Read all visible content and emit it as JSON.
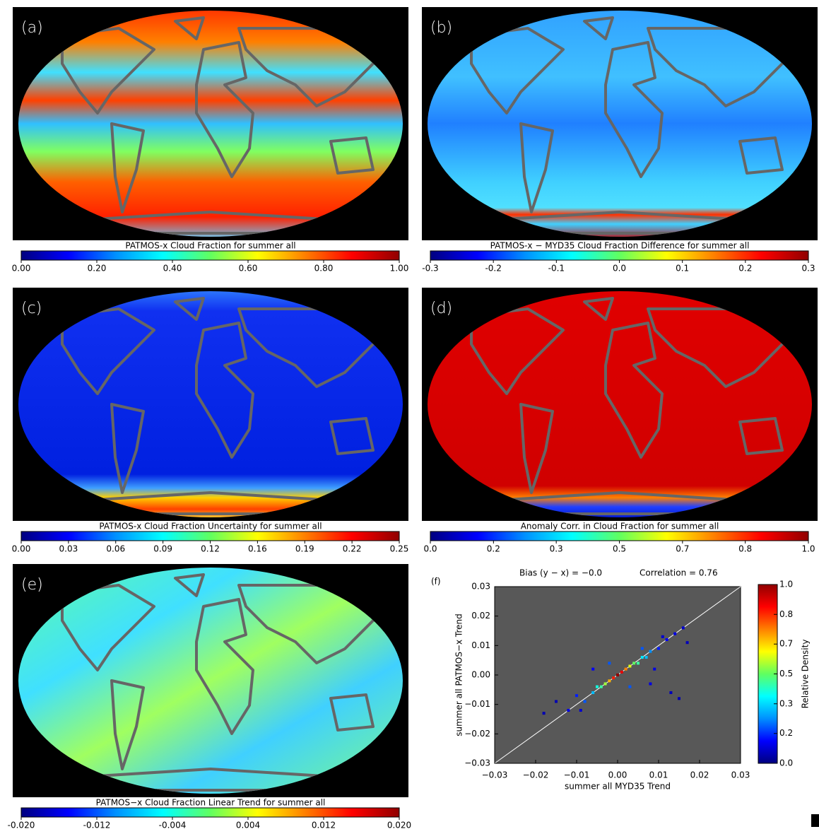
{
  "chart_data": [
    {
      "type": "map",
      "panel_label": "(a)",
      "colorbar": {
        "title": "PATMOS-x Cloud Fraction for summer all",
        "lim": [
          0,
          1
        ],
        "ticks": [
          {
            "value": 0,
            "label": "0.00"
          },
          {
            "value": 0.2,
            "label": "0.20"
          },
          {
            "value": 0.4,
            "label": "0.40"
          },
          {
            "value": 0.6,
            "label": "0.60"
          },
          {
            "value": 0.8,
            "label": "0.80"
          },
          {
            "value": 1,
            "label": "1.00"
          }
        ],
        "colormap": [
          "#00007f",
          "#0000ff",
          "#0090ff",
          "#00ffff",
          "#60ff60",
          "#ffff00",
          "#ff8000",
          "#ff0000",
          "#900000"
        ]
      }
    },
    {
      "type": "map",
      "panel_label": "(b)",
      "colorbar": {
        "title": "PATMOS-x − MYD35 Cloud Fraction Difference for summer all",
        "lim": [
          -0.3,
          0.3
        ],
        "ticks": [
          -0.3,
          -0.2,
          -0.1,
          {
            "value": 0,
            "label": "0.0"
          },
          0.1,
          0.2,
          0.3
        ],
        "colormap": [
          "#00007f",
          "#0000ff",
          "#0090ff",
          "#00ffff",
          "#60ff60",
          "#ffff00",
          "#ff8000",
          "#ff0000",
          "#900000"
        ]
      }
    },
    {
      "type": "map",
      "panel_label": "(c)",
      "colorbar": {
        "title": "PATMOS-x Cloud Fraction Uncertainty for summer all",
        "lim": [
          0,
          0.25
        ],
        "ticks": [
          {
            "value": 0,
            "label": "0.00"
          },
          {
            "value": 0.03125,
            "label": "0.03"
          },
          {
            "value": 0.0625,
            "label": "0.06"
          },
          {
            "value": 0.09375,
            "label": "0.09"
          },
          {
            "value": 0.125,
            "label": "0.12"
          },
          {
            "value": 0.15625,
            "label": "0.16"
          },
          {
            "value": 0.1875,
            "label": "0.19"
          },
          {
            "value": 0.21875,
            "label": "0.22"
          },
          0.25
        ],
        "colormap": [
          "#00007f",
          "#0000ff",
          "#0090ff",
          "#00ffff",
          "#60ff60",
          "#ffff00",
          "#ff8000",
          "#ff0000",
          "#900000"
        ]
      }
    },
    {
      "type": "map",
      "panel_label": "(d)",
      "colorbar": {
        "title": "Anomaly Corr. in Cloud Fraction for summer all",
        "lim": [
          0,
          1
        ],
        "ticks": [
          {
            "value": 0,
            "label": "0.0"
          },
          {
            "value": 0.167,
            "label": "0.2"
          },
          {
            "value": 0.333,
            "label": "0.3"
          },
          0.5,
          {
            "value": 0.667,
            "label": "0.7"
          },
          {
            "value": 0.833,
            "label": "0.8"
          },
          {
            "value": 1,
            "label": "1.0"
          }
        ],
        "colormap": [
          "#00007f",
          "#0000ff",
          "#0090ff",
          "#00ffff",
          "#60ff60",
          "#ffff00",
          "#ff8000",
          "#ff0000",
          "#900000"
        ]
      }
    },
    {
      "type": "map",
      "panel_label": "(e)",
      "colorbar": {
        "title": "PATMOS−x Cloud Fraction Linear Trend for summer all",
        "lim": [
          -0.02,
          0.02
        ],
        "ticks": [
          {
            "value": -0.02,
            "label": "-0.020"
          },
          {
            "value": -0.012,
            "label": "-0.012"
          },
          {
            "value": -0.004,
            "label": "-0.004"
          },
          {
            "value": 0.004,
            "label": "0.004"
          },
          {
            "value": 0.012,
            "label": "0.012"
          },
          {
            "value": 0.02,
            "label": "0.020"
          }
        ],
        "colormap": [
          "#00007f",
          "#0000ff",
          "#0090ff",
          "#00ffff",
          "#60ff60",
          "#ffff00",
          "#ff8000",
          "#ff0000",
          "#900000"
        ]
      }
    },
    {
      "type": "scatter",
      "panel_label": "(f)",
      "annotations": [
        "Bias (y − x) =   −0.0",
        "Correlation =   0.76"
      ],
      "x_label": "summer all MYD35 Trend",
      "y_label": "summer all PATMOS−x Trend",
      "xlim": [
        -0.03,
        0.03
      ],
      "ylim": [
        -0.03,
        0.03
      ],
      "xticks": [
        {
          "value": -0.03,
          "label": "−0.03"
        },
        {
          "value": -0.02,
          "label": "−0.02"
        },
        {
          "value": -0.01,
          "label": "−0.01"
        },
        {
          "value": 0,
          "label": "0.00"
        },
        0.01,
        0.02,
        0.03
      ],
      "yticks": [
        {
          "value": -0.03,
          "label": "−0.03"
        },
        {
          "value": -0.02,
          "label": "−0.02"
        },
        {
          "value": -0.01,
          "label": "−0.01"
        },
        {
          "value": 0,
          "label": "0.00"
        },
        0.01,
        0.02,
        0.03
      ],
      "x": [
        -0.012,
        -0.01,
        -0.008,
        -0.006,
        -0.005,
        -0.004,
        -0.003,
        -0.002,
        -0.001,
        0,
        0.001,
        0.002,
        0.003,
        0.004,
        0.005,
        0.006,
        0.007,
        0.008,
        0.01,
        0.012,
        0.014,
        0.016,
        -0.015,
        -0.009,
        0.009,
        0.013,
        0.015,
        -0.018,
        0.011,
        0.003,
        -0.006,
        0.008,
        0.017,
        -0.002,
        0.006
      ],
      "y": [
        -0.012,
        -0.007,
        -0.009,
        -0.006,
        -0.004,
        -0.004,
        -0.003,
        -0.002,
        -0.001,
        0,
        0.001,
        0.002,
        0.003,
        0.004,
        0.004,
        0.006,
        0.006,
        0.008,
        0.009,
        0.012,
        0.014,
        0.016,
        -0.009,
        -0.012,
        0.002,
        -0.006,
        -0.008,
        -0.013,
        0.013,
        -0.004,
        0.002,
        -0.003,
        0.011,
        0.004,
        0.009
      ],
      "density": [
        0.1,
        0.15,
        0.2,
        0.3,
        0.4,
        0.45,
        0.55,
        0.7,
        0.85,
        1.0,
        0.9,
        0.75,
        0.6,
        0.5,
        0.45,
        0.35,
        0.3,
        0.25,
        0.15,
        0.12,
        0.1,
        0.08,
        0.05,
        0.08,
        0.1,
        0.06,
        0.05,
        0.05,
        0.08,
        0.2,
        0.12,
        0.1,
        0.06,
        0.2,
        0.2
      ],
      "colorbar": {
        "title": "Relative Density",
        "lim": [
          0,
          1
        ],
        "ticks": [
          {
            "value": 0,
            "label": "0.0"
          },
          {
            "value": 0.167,
            "label": "0.2"
          },
          {
            "value": 0.333,
            "label": "0.3"
          },
          0.5,
          {
            "value": 0.667,
            "label": "0.7"
          },
          {
            "value": 0.833,
            "label": "0.8"
          },
          {
            "value": 1,
            "label": "1.0"
          }
        ],
        "colormap": [
          "#00007f",
          "#0000ff",
          "#0090ff",
          "#00ffff",
          "#60ff60",
          "#ffff00",
          "#ff8000",
          "#ff0000",
          "#900000"
        ]
      }
    }
  ]
}
